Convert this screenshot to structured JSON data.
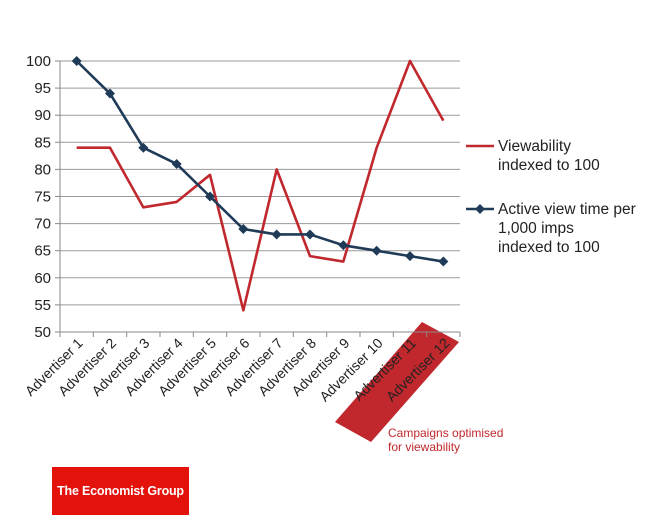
{
  "chart_data": {
    "type": "line",
    "categories": [
      "Advertiser 1",
      "Advertiser 2",
      "Advertiser 3",
      "Advertiser 4",
      "Advertiser 5",
      "Advertiser 6",
      "Advertiser 7",
      "Advertiser 8",
      "Advertiser 9",
      "Advertiser 10",
      "Advertiser 11",
      "Advertiser 12"
    ],
    "series": [
      {
        "name": "Viewability indexed to 100",
        "legend_lines": [
          "Viewability",
          "indexed to 100"
        ],
        "color": "#c0282d",
        "marker": "none",
        "values": [
          84,
          84,
          73,
          74,
          79,
          54,
          80,
          64,
          63,
          84,
          100,
          89
        ]
      },
      {
        "name": "Active view time per 1,000 imps indexed to 100",
        "legend_lines": [
          "Active view time per",
          "1,000 imps",
          "indexed to 100"
        ],
        "color": "#1f3b57",
        "marker": "diamond",
        "values": [
          100,
          94,
          84,
          81,
          75,
          69,
          68,
          68,
          66,
          65,
          64,
          63
        ]
      }
    ],
    "ylim": [
      50,
      100
    ],
    "yticks": [
      50,
      55,
      60,
      65,
      70,
      75,
      80,
      85,
      90,
      95,
      100
    ],
    "grid": true,
    "legend_position": "right",
    "highlight": {
      "categories": [
        "Advertiser 11",
        "Advertiser 12"
      ],
      "color": "#c0282d"
    },
    "annotation": [
      "Campaigns optimised",
      "for viewability"
    ]
  },
  "logo": {
    "text": "The Economist Group",
    "color": "#e3120b"
  }
}
